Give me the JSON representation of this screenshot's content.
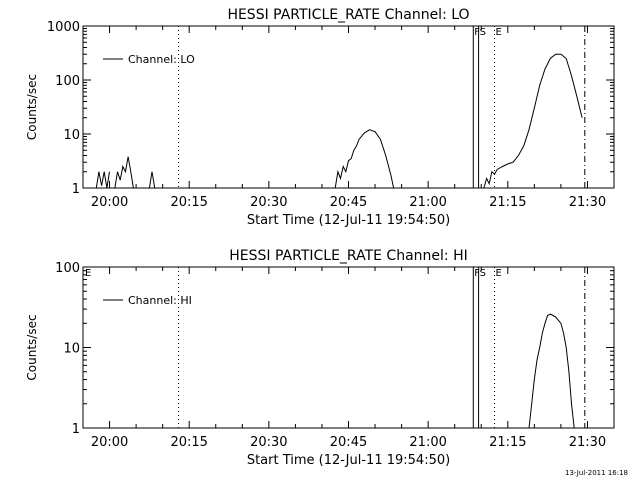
{
  "footer_timestamp": "13-Jul-2011 16:18",
  "chart_data": [
    {
      "type": "line",
      "title": "HESSI PARTICLE_RATE Channel: LO",
      "xlabel": "Start Time (12-Jul-11 19:54:50)",
      "ylabel": "Counts/sec",
      "yscale": "log",
      "xlim": [
        "19:55",
        "21:35"
      ],
      "ylim": [
        1,
        1000
      ],
      "x_ticks": [
        "20:00",
        "20:15",
        "20:30",
        "20:45",
        "21:00",
        "21:15",
        "21:30"
      ],
      "y_ticks": [
        "1",
        "10",
        "100",
        "1000"
      ],
      "legend": {
        "label": "Channel: LO",
        "position": "top-left"
      },
      "grid": false,
      "markers": [
        {
          "time": "20:13",
          "style": "dotted",
          "label": ""
        },
        {
          "time": "21:08.5",
          "style": "solid",
          "label": "F"
        },
        {
          "time": "21:09.5",
          "style": "solid",
          "label": "S"
        },
        {
          "time": "21:12.5",
          "style": "dotted",
          "label": "E"
        },
        {
          "time": "21:29.5",
          "style": "dashdot",
          "label": ""
        }
      ],
      "segments": [
        {
          "points": [
            [
              "19:57.5",
              1
            ],
            [
              "19:58",
              2
            ],
            [
              "19:58.5",
              1.1
            ],
            [
              "19:59",
              2
            ],
            [
              "19:59.5",
              1
            ],
            [
              "20:00",
              2
            ]
          ]
        },
        {
          "points": [
            [
              "20:01",
              1
            ],
            [
              "20:01.5",
              2
            ],
            [
              "20:02",
              1.4
            ],
            [
              "20:02.5",
              2.5
            ],
            [
              "20:03",
              2
            ],
            [
              "20:03.5",
              3.8
            ],
            [
              "20:04",
              2
            ],
            [
              "20:04.5",
              1
            ]
          ]
        },
        {
          "points": [
            [
              "20:07.5",
              1
            ],
            [
              "20:08",
              2
            ],
            [
              "20:08.5",
              1
            ]
          ]
        },
        {
          "points": [
            [
              "20:42.5",
              1
            ],
            [
              "20:43",
              2
            ],
            [
              "20:43.5",
              1.5
            ],
            [
              "20:44",
              2.5
            ],
            [
              "20:44.5",
              2
            ],
            [
              "20:45",
              3.2
            ],
            [
              "20:45.5",
              3.5
            ],
            [
              "20:46",
              5
            ],
            [
              "20:46.5",
              6
            ],
            [
              "20:47",
              8
            ],
            [
              "20:48",
              10.5
            ],
            [
              "20:49",
              12
            ],
            [
              "20:50",
              11
            ],
            [
              "20:51",
              8
            ],
            [
              "20:52",
              4
            ],
            [
              "20:53",
              1.7
            ],
            [
              "20:53.5",
              1
            ]
          ]
        },
        {
          "points": [
            [
              "21:10.5",
              1
            ],
            [
              "21:11",
              1.5
            ],
            [
              "21:11.5",
              1.2
            ],
            [
              "21:12",
              2
            ],
            [
              "21:12.5",
              1.8
            ],
            [
              "21:13",
              2.2
            ],
            [
              "21:14",
              2.5
            ],
            [
              "21:15",
              2.8
            ],
            [
              "21:16",
              3
            ],
            [
              "21:17",
              4
            ],
            [
              "21:18",
              6
            ],
            [
              "21:19",
              12
            ],
            [
              "21:20",
              30
            ],
            [
              "21:21",
              80
            ],
            [
              "21:22",
              160
            ],
            [
              "21:23",
              250
            ],
            [
              "21:24",
              300
            ],
            [
              "21:25",
              300
            ],
            [
              "21:26",
              250
            ],
            [
              "21:27",
              120
            ],
            [
              "21:28",
              50
            ],
            [
              "21:29",
              20
            ]
          ]
        }
      ]
    },
    {
      "type": "line",
      "title": "HESSI PARTICLE_RATE Channel: HI",
      "xlabel": "Start Time (12-Jul-11 19:54:50)",
      "ylabel": "Counts/sec",
      "yscale": "log",
      "xlim": [
        "19:55",
        "21:35"
      ],
      "ylim": [
        1,
        100
      ],
      "x_ticks": [
        "20:00",
        "20:15",
        "20:30",
        "20:45",
        "21:00",
        "21:15",
        "21:30"
      ],
      "y_ticks": [
        "1",
        "10",
        "100"
      ],
      "legend": {
        "label": "Channel: HI",
        "position": "top-left"
      },
      "grid": false,
      "corner_label": "E",
      "markers": [
        {
          "time": "20:13",
          "style": "dotted",
          "label": ""
        },
        {
          "time": "21:08.5",
          "style": "solid",
          "label": "F"
        },
        {
          "time": "21:09.5",
          "style": "solid",
          "label": "S"
        },
        {
          "time": "21:12.5",
          "style": "dotted",
          "label": "E"
        },
        {
          "time": "21:29.5",
          "style": "dashdot",
          "label": ""
        }
      ],
      "segments": [
        {
          "points": [
            [
              "21:19",
              1
            ],
            [
              "21:19.5",
              2
            ],
            [
              "21:20",
              4
            ],
            [
              "21:20.5",
              7
            ],
            [
              "21:21",
              10
            ],
            [
              "21:21.5",
              15
            ],
            [
              "21:22",
              20
            ],
            [
              "21:22.5",
              25
            ],
            [
              "21:23",
              26
            ],
            [
              "21:23.5",
              25
            ],
            [
              "21:24",
              24
            ],
            [
              "21:25",
              20
            ],
            [
              "21:25.5",
              15
            ],
            [
              "21:26",
              10
            ],
            [
              "21:26.5",
              5
            ],
            [
              "21:27",
              2
            ],
            [
              "21:27.5",
              1
            ]
          ]
        }
      ]
    }
  ]
}
